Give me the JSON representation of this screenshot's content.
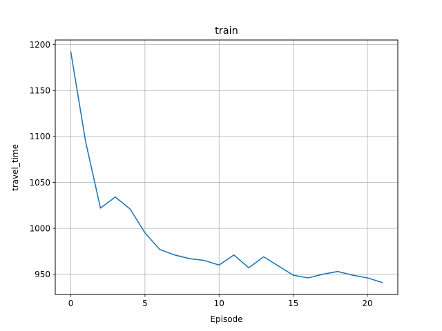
{
  "chart_data": {
    "type": "line",
    "title": "train",
    "xlabel": "Episode",
    "ylabel": "travel_time",
    "xlim": [
      -1.05,
      22.05
    ],
    "ylim": [
      928,
      1205
    ],
    "grid": true,
    "xticks": [
      0,
      5,
      10,
      15,
      20
    ],
    "yticks": [
      950,
      1000,
      1050,
      1100,
      1150,
      1200
    ],
    "series": [
      {
        "color": "#1f77b4",
        "x": [
          0,
          1,
          2,
          3,
          4,
          5,
          6,
          7,
          8,
          9,
          10,
          11,
          12,
          13,
          14,
          15,
          16,
          17,
          18,
          19,
          20,
          21
        ],
        "y": [
          1192,
          1094,
          1022,
          1034,
          1021,
          995,
          977,
          971,
          967,
          965,
          960,
          971,
          957,
          969,
          959,
          949,
          946,
          950,
          953,
          949,
          946,
          941
        ]
      }
    ]
  }
}
